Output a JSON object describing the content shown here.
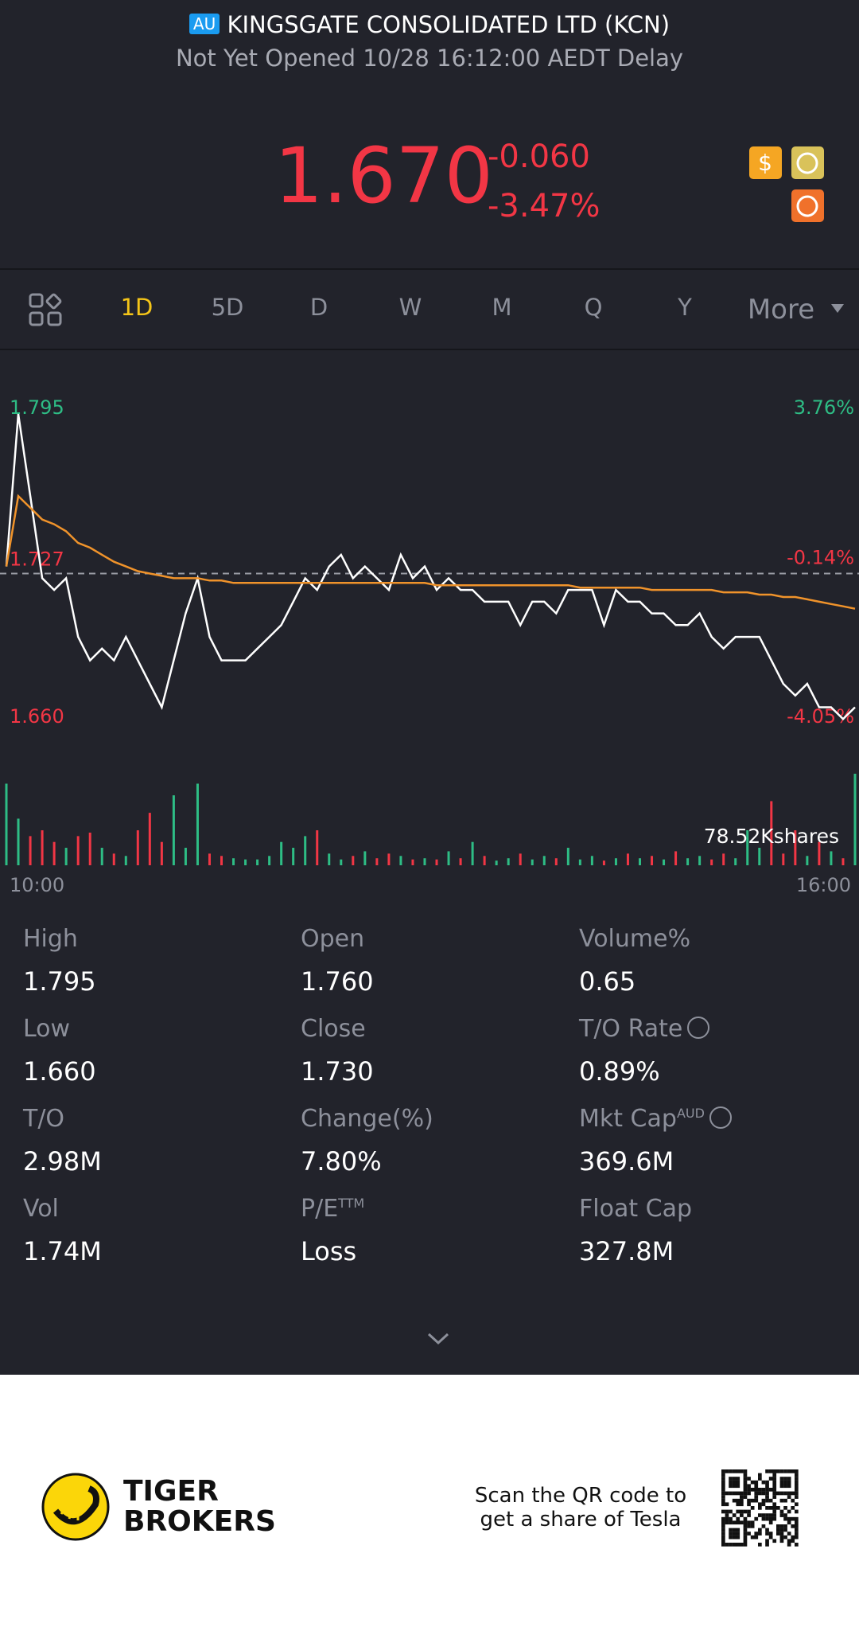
{
  "header": {
    "market": "AU",
    "title": "KINGSGATE CONSOLIDATED LTD (KCN)",
    "status": "Not Yet Opened 10/28 16:12:00 AEDT Delay"
  },
  "quote": {
    "price": "1.670",
    "change": "-0.060",
    "change_pct": "-3.47%"
  },
  "tabs": [
    "1D",
    "5D",
    "D",
    "W",
    "M",
    "Q",
    "Y",
    "More"
  ],
  "active_tab": 0,
  "chart": {
    "type": "line",
    "ylim": [
      1.66,
      1.795
    ],
    "yticks": [
      1.795,
      1.727,
      {
        "value": 1.66,
        "label": "1.660"
      }
    ],
    "y2lim": [
      -4.05,
      3.76
    ],
    "y2ticks": [
      {
        "value": 3.76,
        "label": "3.76%"
      },
      {
        "value": -0.14,
        "label": "-0.14%"
      },
      {
        "value": -4.05,
        "label": "-4.05%"
      }
    ],
    "x_labels": [
      "10:00",
      "16:00"
    ],
    "up_color": "#2ebd85",
    "down_color": "#f23645",
    "series": [
      {
        "name": "Price",
        "color": "#ffffff",
        "values": [
          1.73,
          1.795,
          1.76,
          1.725,
          1.72,
          1.725,
          1.7,
          1.69,
          1.695,
          1.69,
          1.7,
          1.69,
          1.68,
          1.67,
          1.69,
          1.71,
          1.725,
          1.7,
          1.69,
          1.69,
          1.69,
          1.695,
          1.7,
          1.705,
          1.715,
          1.725,
          1.72,
          1.73,
          1.735,
          1.725,
          1.73,
          1.725,
          1.72,
          1.735,
          1.725,
          1.73,
          1.72,
          1.725,
          1.72,
          1.72,
          1.715,
          1.715,
          1.715,
          1.705,
          1.715,
          1.715,
          1.71,
          1.72,
          1.72,
          1.72,
          1.705,
          1.72,
          1.715,
          1.715,
          1.71,
          1.71,
          1.705,
          1.705,
          1.71,
          1.7,
          1.695,
          1.7,
          1.7,
          1.7,
          1.69,
          1.68,
          1.675,
          1.68,
          1.67,
          1.67,
          1.665,
          1.67
        ]
      },
      {
        "name": "Average",
        "color": "#f0932b",
        "values": [
          1.73,
          1.76,
          1.755,
          1.75,
          1.748,
          1.745,
          1.74,
          1.738,
          1.735,
          1.732,
          1.73,
          1.728,
          1.727,
          1.726,
          1.725,
          1.725,
          1.725,
          1.724,
          1.724,
          1.723,
          1.723,
          1.723,
          1.723,
          1.723,
          1.723,
          1.723,
          1.723,
          1.723,
          1.723,
          1.723,
          1.723,
          1.723,
          1.723,
          1.723,
          1.723,
          1.723,
          1.722,
          1.722,
          1.722,
          1.722,
          1.722,
          1.722,
          1.722,
          1.722,
          1.722,
          1.722,
          1.722,
          1.722,
          1.721,
          1.721,
          1.721,
          1.721,
          1.721,
          1.721,
          1.72,
          1.72,
          1.72,
          1.72,
          1.72,
          1.72,
          1.719,
          1.719,
          1.719,
          1.718,
          1.718,
          1.717,
          1.717,
          1.716,
          1.715,
          1.714,
          1.713,
          1.712
        ]
      }
    ],
    "volume": {
      "max": {
        "value": 78.52,
        "label": "78.52Kshares"
      },
      "values": [
        70,
        40,
        25,
        30,
        20,
        15,
        25,
        28,
        15,
        10,
        8,
        30,
        45,
        20,
        60,
        15,
        70,
        10,
        8,
        6,
        5,
        5,
        8,
        20,
        15,
        25,
        30,
        10,
        5,
        8,
        12,
        6,
        10,
        8,
        5,
        6,
        5,
        12,
        6,
        20,
        8,
        4,
        6,
        10,
        5,
        8,
        6,
        15,
        5,
        8,
        4,
        6,
        10,
        6,
        8,
        5,
        12,
        6,
        8,
        5,
        10,
        6,
        30,
        15,
        55,
        10,
        30,
        8,
        20,
        12,
        6,
        78.52
      ]
    }
  },
  "stats": [
    {
      "label": "High",
      "value": "1.795"
    },
    {
      "label": "Open",
      "value": "1.760"
    },
    {
      "label": "Volume%",
      "value": "0.65"
    },
    {
      "label": "Low",
      "value": "1.660"
    },
    {
      "label": "Close",
      "value": "1.730"
    },
    {
      "label": "T/O Rate",
      "value": "0.89%"
    },
    {
      "label": "T/O",
      "value": "2.98M"
    },
    {
      "label": "Change(%)",
      "value": "7.80%"
    },
    {
      "label": "Mkt Cap",
      "sup": "AUD",
      "value": "369.6M"
    },
    {
      "label": "Vol",
      "value": "1.74M"
    },
    {
      "label": "P/E",
      "sup": "TTM",
      "value": "Loss"
    },
    {
      "label": "Float Cap",
      "value": "327.8M"
    }
  ],
  "footer": {
    "brand": [
      "TIGER",
      "BROKERS"
    ],
    "promo": [
      "Scan the QR code to",
      "get a share of Tesla"
    ]
  }
}
